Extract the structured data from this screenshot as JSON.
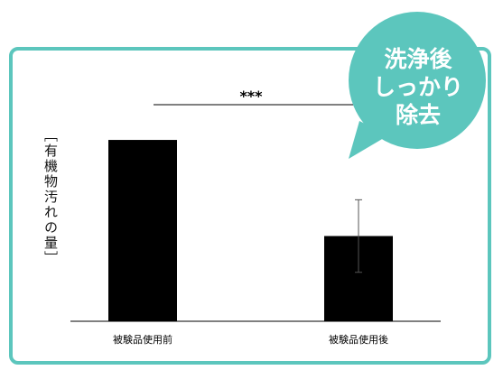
{
  "callout": {
    "line1": "洗浄後",
    "line2": "しっかり",
    "line3": "除去",
    "color": "#5cc6bd"
  },
  "chart_data": {
    "type": "bar",
    "categories": [
      "被験品使用前",
      "被験品使用後"
    ],
    "values": [
      100,
      47
    ],
    "error_bars": [
      null,
      20
    ],
    "ylabel": "［有機物汚れの量］",
    "ylim": [
      0,
      105
    ],
    "significance": "***",
    "bar_color": "#000000",
    "grid": false,
    "y_ticks_shown": false
  }
}
